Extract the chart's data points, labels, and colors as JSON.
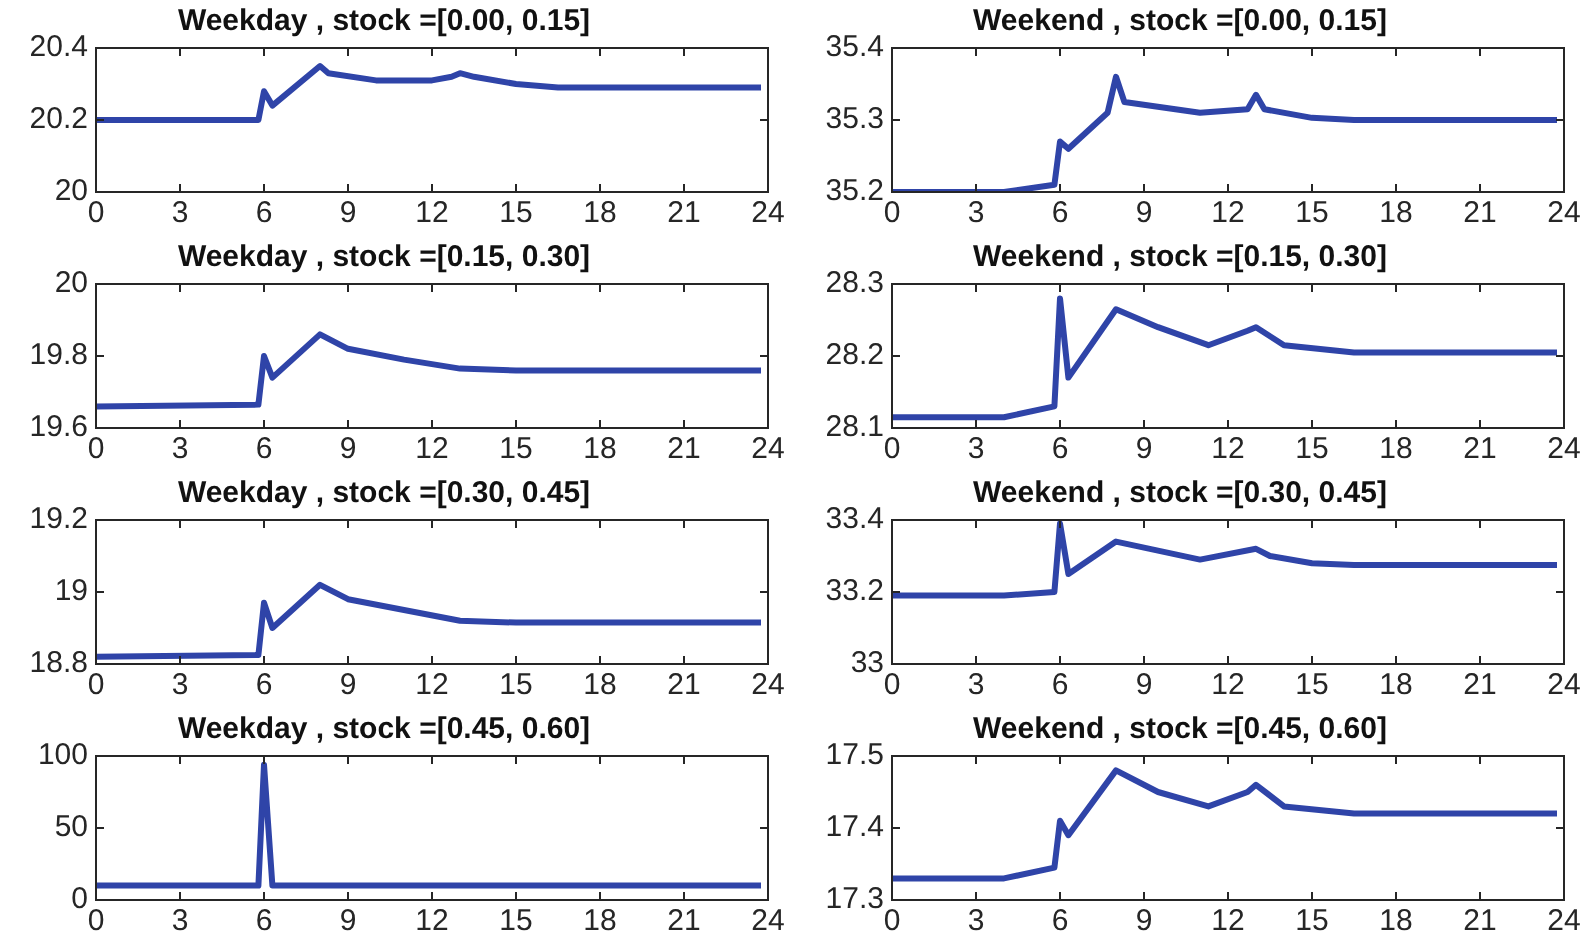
{
  "chart_data": [
    {
      "type": "line",
      "title": "Weekday , stock =[0.00, 0.15]",
      "xlim": [
        0,
        24
      ],
      "xticks": [
        0,
        3,
        6,
        9,
        12,
        15,
        18,
        21,
        24
      ],
      "ylim": [
        20,
        20.4
      ],
      "yticks": [
        20,
        20.2,
        20.4
      ],
      "grid": false,
      "legend": false,
      "marker": "none",
      "line_style": "solid",
      "series": [
        {
          "color": "#2f44a8",
          "x": [
            0,
            5.8,
            6,
            6.3,
            8,
            8.3,
            10,
            12,
            12.7,
            13,
            13.5,
            15,
            16.5,
            23.75
          ],
          "values": [
            20.2,
            20.2,
            20.28,
            20.24,
            20.35,
            20.33,
            20.31,
            20.31,
            20.32,
            20.33,
            20.32,
            20.3,
            20.29,
            20.29
          ]
        }
      ]
    },
    {
      "type": "line",
      "title": "Weekend , stock =[0.00, 0.15]",
      "xlim": [
        0,
        24
      ],
      "xticks": [
        0,
        3,
        6,
        9,
        12,
        15,
        18,
        21,
        24
      ],
      "ylim": [
        35.2,
        35.4
      ],
      "yticks": [
        35.2,
        35.3,
        35.4
      ],
      "grid": false,
      "legend": false,
      "marker": "none",
      "line_style": "solid",
      "series": [
        {
          "color": "#2f44a8",
          "x": [
            0,
            4,
            5.8,
            6,
            6.3,
            7.7,
            8,
            8.3,
            11,
            12.7,
            13,
            13.3,
            15,
            16.5,
            23.75
          ],
          "values": [
            35.2,
            35.2,
            35.21,
            35.27,
            35.26,
            35.31,
            35.36,
            35.325,
            35.31,
            35.315,
            35.335,
            35.315,
            35.303,
            35.3,
            35.3
          ]
        }
      ]
    },
    {
      "type": "line",
      "title": "Weekday , stock =[0.15, 0.30]",
      "xlim": [
        0,
        24
      ],
      "xticks": [
        0,
        3,
        6,
        9,
        12,
        15,
        18,
        21,
        24
      ],
      "ylim": [
        19.6,
        20
      ],
      "yticks": [
        19.6,
        19.8,
        20
      ],
      "grid": false,
      "legend": false,
      "marker": "none",
      "line_style": "solid",
      "series": [
        {
          "color": "#2f44a8",
          "x": [
            0,
            5.8,
            6,
            6.3,
            8,
            9,
            11,
            13,
            15,
            23.75
          ],
          "values": [
            19.66,
            19.665,
            19.8,
            19.74,
            19.86,
            19.82,
            19.79,
            19.765,
            19.76,
            19.76
          ]
        }
      ]
    },
    {
      "type": "line",
      "title": "Weekend , stock =[0.15, 0.30]",
      "xlim": [
        0,
        24
      ],
      "xticks": [
        0,
        3,
        6,
        9,
        12,
        15,
        18,
        21,
        24
      ],
      "ylim": [
        28.1,
        28.3
      ],
      "yticks": [
        28.1,
        28.2,
        28.3
      ],
      "grid": false,
      "legend": false,
      "marker": "none",
      "line_style": "solid",
      "series": [
        {
          "color": "#2f44a8",
          "x": [
            0,
            4,
            5.8,
            6,
            6.3,
            8,
            9.5,
            11.3,
            12.7,
            13,
            14,
            16.5,
            23.75
          ],
          "values": [
            28.115,
            28.115,
            28.13,
            28.28,
            28.17,
            28.265,
            28.24,
            28.215,
            28.235,
            28.24,
            28.215,
            28.205,
            28.205
          ]
        }
      ]
    },
    {
      "type": "line",
      "title": "Weekday , stock =[0.30, 0.45]",
      "xlim": [
        0,
        24
      ],
      "xticks": [
        0,
        3,
        6,
        9,
        12,
        15,
        18,
        21,
        24
      ],
      "ylim": [
        18.8,
        19.2
      ],
      "yticks": [
        18.8,
        19,
        19.2
      ],
      "grid": false,
      "legend": false,
      "marker": "none",
      "line_style": "solid",
      "series": [
        {
          "color": "#2f44a8",
          "x": [
            0,
            5.8,
            6,
            6.3,
            8,
            9,
            11,
            13,
            15,
            23.75
          ],
          "values": [
            18.82,
            18.825,
            18.97,
            18.9,
            19.02,
            18.98,
            18.95,
            18.92,
            18.915,
            18.915
          ]
        }
      ]
    },
    {
      "type": "line",
      "title": "Weekend , stock =[0.30, 0.45]",
      "xlim": [
        0,
        24
      ],
      "xticks": [
        0,
        3,
        6,
        9,
        12,
        15,
        18,
        21,
        24
      ],
      "ylim": [
        33,
        33.4
      ],
      "yticks": [
        33,
        33.2,
        33.4
      ],
      "grid": false,
      "legend": false,
      "marker": "none",
      "line_style": "solid",
      "series": [
        {
          "color": "#2f44a8",
          "x": [
            0,
            4,
            5.8,
            6,
            6.3,
            8,
            11,
            13,
            13.5,
            15,
            16.5,
            23.75
          ],
          "values": [
            33.19,
            33.19,
            33.2,
            33.39,
            33.25,
            33.34,
            33.29,
            33.32,
            33.3,
            33.28,
            33.275,
            33.275
          ]
        }
      ]
    },
    {
      "type": "line",
      "title": "Weekday , stock =[0.45, 0.60]",
      "xlim": [
        0,
        24
      ],
      "xticks": [
        0,
        3,
        6,
        9,
        12,
        15,
        18,
        21,
        24
      ],
      "ylim": [
        0,
        100
      ],
      "yticks": [
        0,
        50,
        100
      ],
      "grid": false,
      "legend": false,
      "marker": "none",
      "line_style": "solid",
      "series": [
        {
          "color": "#2f44a8",
          "x": [
            0,
            5.8,
            6,
            6.3,
            23.75
          ],
          "values": [
            10,
            10,
            94,
            10,
            10
          ]
        }
      ]
    },
    {
      "type": "line",
      "title": "Weekend , stock =[0.45, 0.60]",
      "xlim": [
        0,
        24
      ],
      "xticks": [
        0,
        3,
        6,
        9,
        12,
        15,
        18,
        21,
        24
      ],
      "ylim": [
        17.3,
        17.5
      ],
      "yticks": [
        17.3,
        17.4,
        17.5
      ],
      "grid": false,
      "legend": false,
      "marker": "none",
      "line_style": "solid",
      "series": [
        {
          "color": "#2f44a8",
          "x": [
            0,
            4,
            5.8,
            6,
            6.3,
            8,
            9.5,
            11.3,
            12.7,
            13,
            14,
            16.5,
            23.75
          ],
          "values": [
            17.33,
            17.33,
            17.345,
            17.41,
            17.39,
            17.48,
            17.45,
            17.43,
            17.45,
            17.46,
            17.43,
            17.42,
            17.42
          ]
        }
      ]
    }
  ]
}
